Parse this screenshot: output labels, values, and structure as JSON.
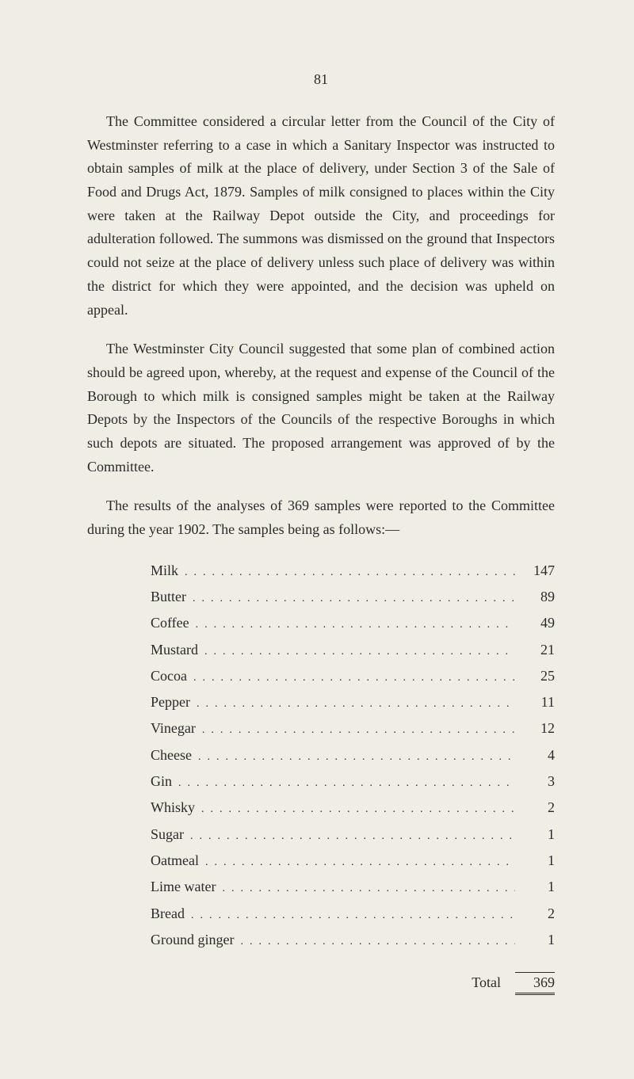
{
  "page_number": "81",
  "paragraphs": [
    "The Committee considered a circular letter from the Council of the City of Westminster referring to a case in which a Sanitary Inspector was instructed to obtain samples of milk at the place of delivery, under Section 3 of the Sale of Food and Drugs Act, 1879. Samples of milk consigned to places within the City were taken at the Railway Depot outside the City, and proceedings for adulteration followed. The summons was dismissed on the ground that Inspectors could not seize at the place of delivery unless such place of delivery was within the district for which they were appointed, and the decision was upheld on appeal.",
    "The Westminster City Council suggested that some plan of combined action should be agreed upon, whereby, at the request and expense of the Council of the Borough to which milk is consigned samples might be taken at the Railway Depots by the Inspectors of the Councils of the respective Boroughs in which such depots are situated. The proposed arrangement was approved of by the Committee.",
    "The results of the analyses of 369 samples were reported to the Committee during the year 1902. The samples being as follows:—"
  ],
  "table": {
    "items": [
      {
        "label": "Milk",
        "value": "147"
      },
      {
        "label": "Butter",
        "value": "89"
      },
      {
        "label": "Coffee",
        "value": "49"
      },
      {
        "label": "Mustard",
        "value": "21"
      },
      {
        "label": "Cocoa",
        "value": "25"
      },
      {
        "label": "Pepper",
        "value": "11"
      },
      {
        "label": "Vinegar",
        "value": "12"
      },
      {
        "label": "Cheese",
        "value": "4"
      },
      {
        "label": "Gin",
        "value": "3"
      },
      {
        "label": "Whisky",
        "value": "2"
      },
      {
        "label": "Sugar",
        "value": "1"
      },
      {
        "label": "Oatmeal",
        "value": "1"
      },
      {
        "label": "Lime water",
        "value": "1"
      },
      {
        "label": "Bread",
        "value": "2"
      },
      {
        "label": "Ground ginger",
        "value": "1"
      }
    ],
    "total_label": "Total",
    "total_value": "369"
  },
  "styling": {
    "background_color": "#f0ede4",
    "text_color": "#2a2a2a",
    "body_fontsize": 18,
    "line_height": 1.65,
    "font_family": "Georgia, Times New Roman, serif"
  }
}
